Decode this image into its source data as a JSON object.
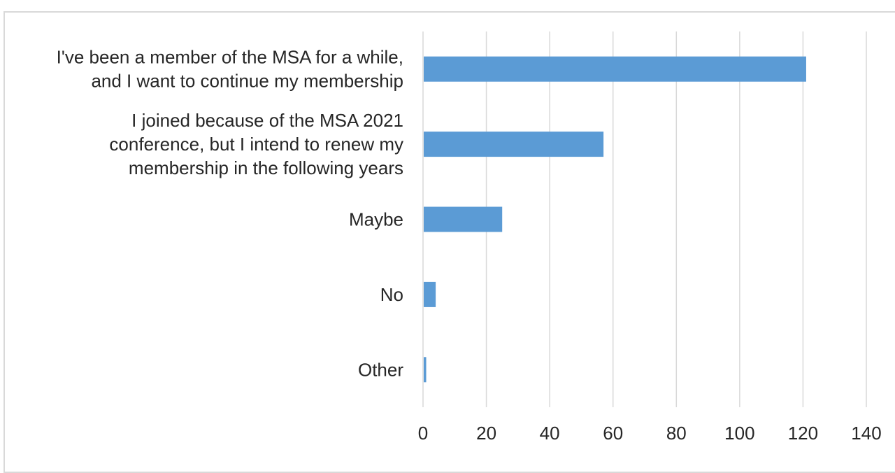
{
  "chart_data": {
    "type": "bar",
    "orientation": "horizontal",
    "categories": [
      [
        "I've been a member of the MSA for a while,",
        "and I want to continue my membership"
      ],
      [
        "I joined because of the MSA 2021",
        "conference, but I intend to renew my",
        "membership in the following years"
      ],
      [
        "Maybe"
      ],
      [
        "No"
      ],
      [
        "Other"
      ]
    ],
    "values": [
      121,
      57,
      25,
      4,
      1
    ],
    "xlim": [
      0,
      140
    ],
    "xticks": [
      "0",
      "20",
      "40",
      "60",
      "80",
      "100",
      "120",
      "140"
    ],
    "tick_values": [
      0,
      20,
      40,
      60,
      80,
      100,
      120,
      140
    ],
    "title": "",
    "xlabel": "",
    "ylabel": "",
    "grid": "vertical",
    "legend": "none",
    "bar_color": "#5b9bd5",
    "grid_color": "#d9d9d9",
    "text_color": "#262626"
  }
}
